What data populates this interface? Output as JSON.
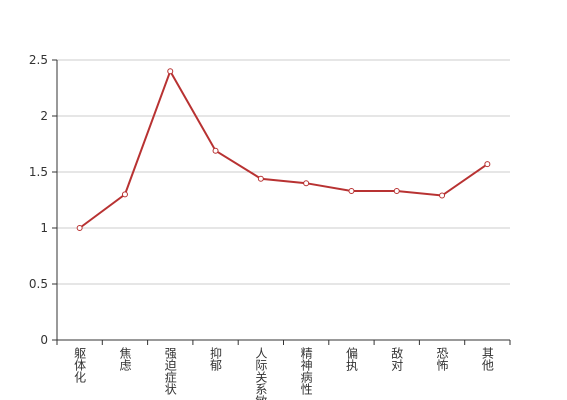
{
  "chart_data": {
    "type": "line",
    "categories": [
      "躯体化",
      "焦虑",
      "强迫症状",
      "抑郁",
      "人际关系敏感",
      "精神病性",
      "偏执",
      "敌对",
      "恐怖",
      "其他"
    ],
    "series": [
      {
        "color": "#b83232",
        "values": [
          1.0,
          1.3,
          2.4,
          1.69,
          1.44,
          1.4,
          1.33,
          1.33,
          1.29,
          1.57
        ]
      }
    ],
    "ylim": [
      0,
      2.5
    ],
    "yticks": [
      0,
      0.5,
      1,
      1.5,
      2,
      2.5
    ],
    "grid": true
  }
}
